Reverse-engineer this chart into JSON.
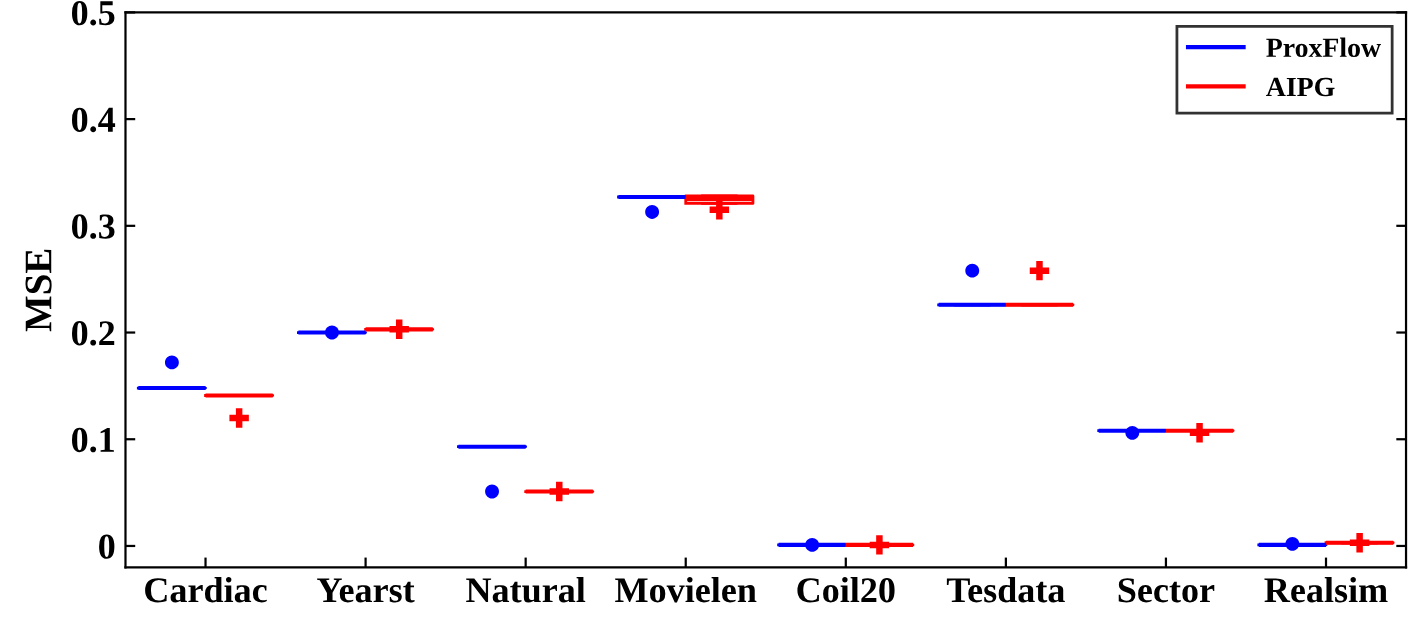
{
  "chart_data": {
    "type": "box",
    "ylabel": "MSE",
    "categories": [
      "Cardiac",
      "Yearst",
      "Natural",
      "Movielen",
      "Coil20",
      "Tesdata",
      "Sector",
      "Realsim"
    ],
    "series": [
      {
        "name": "ProxFlow",
        "color": "#0000ff",
        "marker": "circle",
        "boxes": [
          {
            "low": 0.148,
            "q1": 0.148,
            "median": 0.148,
            "q3": 0.148,
            "high": 0.148,
            "outliers": [
              0.172
            ]
          },
          {
            "low": 0.2,
            "q1": 0.2,
            "median": 0.2,
            "q3": 0.2,
            "high": 0.2,
            "outliers": [
              0.2
            ]
          },
          {
            "low": 0.093,
            "q1": 0.093,
            "median": 0.093,
            "q3": 0.093,
            "high": 0.093,
            "outliers": [
              0.051
            ]
          },
          {
            "low": 0.327,
            "q1": 0.327,
            "median": 0.327,
            "q3": 0.327,
            "high": 0.327,
            "outliers": [
              0.313
            ]
          },
          {
            "low": 0.001,
            "q1": 0.001,
            "median": 0.001,
            "q3": 0.001,
            "high": 0.001,
            "outliers": [
              0.001
            ]
          },
          {
            "low": 0.226,
            "q1": 0.226,
            "median": 0.226,
            "q3": 0.226,
            "high": 0.226,
            "outliers": [
              0.258
            ]
          },
          {
            "low": 0.108,
            "q1": 0.108,
            "median": 0.108,
            "q3": 0.108,
            "high": 0.108,
            "outliers": [
              0.106
            ]
          },
          {
            "low": 0.001,
            "q1": 0.001,
            "median": 0.001,
            "q3": 0.001,
            "high": 0.001,
            "outliers": [
              0.002
            ]
          }
        ]
      },
      {
        "name": "AIPG",
        "color": "#ff0000",
        "marker": "cross",
        "boxes": [
          {
            "low": 0.141,
            "q1": 0.141,
            "median": 0.141,
            "q3": 0.141,
            "high": 0.141,
            "outliers": [
              0.12
            ]
          },
          {
            "low": 0.203,
            "q1": 0.203,
            "median": 0.203,
            "q3": 0.203,
            "high": 0.203,
            "outliers": [
              0.203
            ]
          },
          {
            "low": 0.051,
            "q1": 0.051,
            "median": 0.051,
            "q3": 0.051,
            "high": 0.051,
            "outliers": [
              0.051
            ]
          },
          {
            "low": 0.321,
            "q1": 0.321,
            "median": 0.325,
            "q3": 0.328,
            "high": 0.328,
            "outliers": [
              0.315
            ]
          },
          {
            "low": 0.001,
            "q1": 0.001,
            "median": 0.001,
            "q3": 0.001,
            "high": 0.001,
            "outliers": [
              0.001
            ]
          },
          {
            "low": 0.226,
            "q1": 0.226,
            "median": 0.226,
            "q3": 0.226,
            "high": 0.226,
            "outliers": [
              0.258
            ]
          },
          {
            "low": 0.108,
            "q1": 0.108,
            "median": 0.108,
            "q3": 0.108,
            "high": 0.108,
            "outliers": [
              0.106
            ]
          },
          {
            "low": 0.003,
            "q1": 0.003,
            "median": 0.003,
            "q3": 0.003,
            "high": 0.003,
            "outliers": [
              0.003
            ]
          }
        ]
      }
    ],
    "ylim": [
      -0.02,
      0.5
    ],
    "yticks": [
      0,
      0.1,
      0.2,
      0.3,
      0.4,
      0.5
    ],
    "grid": false,
    "legend": "top right"
  }
}
